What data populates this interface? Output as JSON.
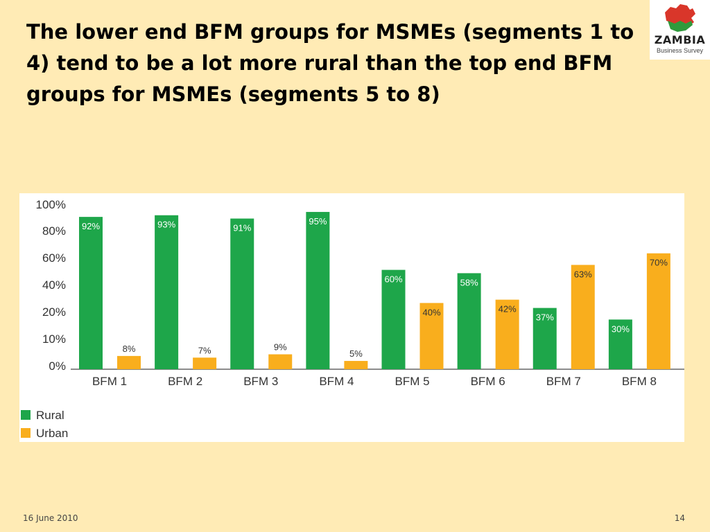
{
  "slide": {
    "title": "The lower end BFM groups for MSMEs (segments 1 to 4) tend to be a lot more rural than the top end BFM groups for MSMEs (segments 5 to 8)",
    "date": "16 June 2010",
    "page_number": "14"
  },
  "logo": {
    "word": "ZAMBIA",
    "subtitle": "Business Survey",
    "icon": "zambia-map-icon"
  },
  "colors": {
    "rural": "#1ea64a",
    "urban": "#f9ae1d",
    "axis": "#8c8c8c",
    "slide_background": "#ffebb5"
  },
  "chart_data": {
    "type": "bar",
    "title": "",
    "xlabel": "",
    "ylabel": "",
    "categories": [
      "BFM 1",
      "BFM 2",
      "BFM 3",
      "BFM 4",
      "BFM 5",
      "BFM 6",
      "BFM 7",
      "BFM 8"
    ],
    "y_ticks": [
      "100%",
      "80%",
      "60%",
      "40%",
      "20%",
      "10%",
      "0%"
    ],
    "ylim": [
      0,
      100
    ],
    "grid": false,
    "legend_position": "bottom-left",
    "series": [
      {
        "name": "Rural",
        "values": [
          92,
          93,
          91,
          95,
          60,
          58,
          37,
          30
        ],
        "labels": [
          "92%",
          "93%",
          "91%",
          "95%",
          "60%",
          "58%",
          "37%",
          "30%"
        ],
        "color": "#1ea64a"
      },
      {
        "name": "Urban",
        "values": [
          8,
          7,
          9,
          5,
          40,
          42,
          63,
          70
        ],
        "labels": [
          "8%",
          "7%",
          "9%",
          "5%",
          "40%",
          "42%",
          "63%",
          "70%"
        ],
        "color": "#f9ae1d"
      }
    ]
  }
}
